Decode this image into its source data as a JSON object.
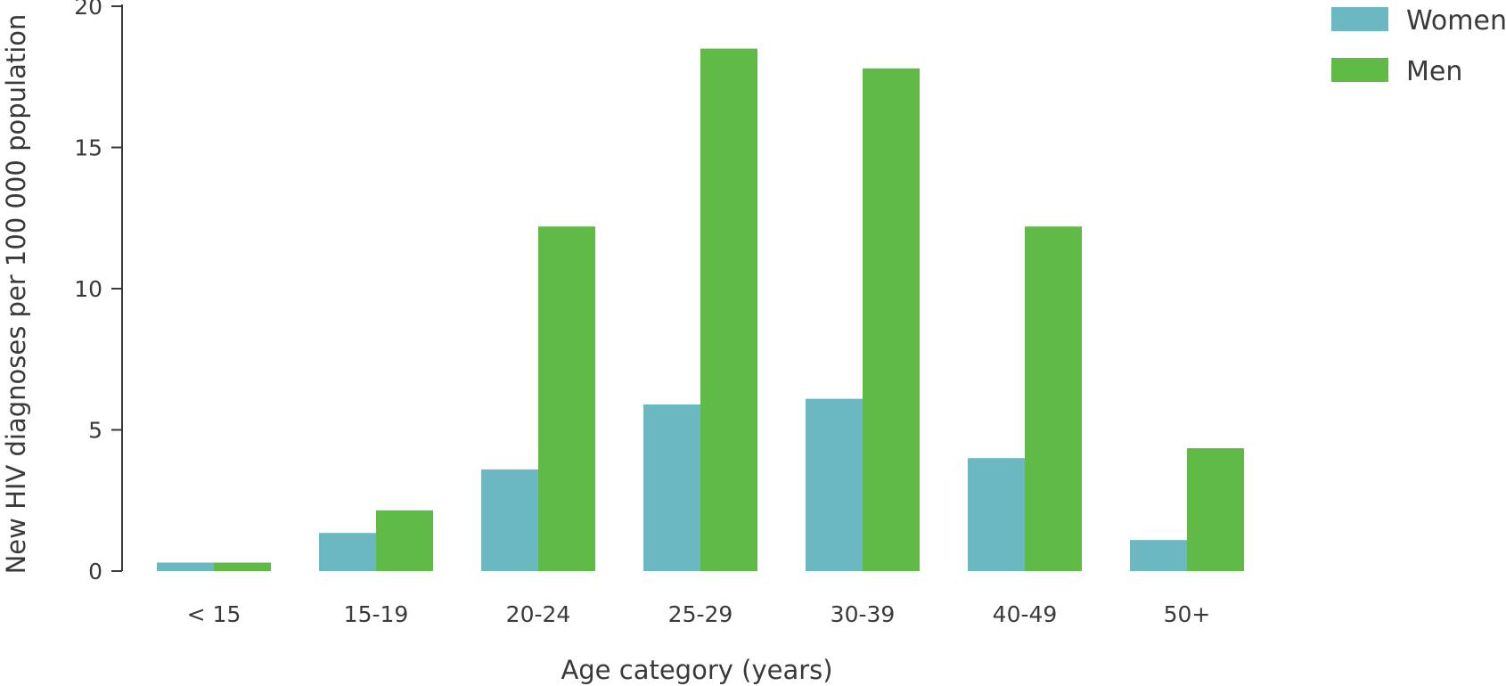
{
  "chart_data": {
    "type": "bar",
    "title": "",
    "xlabel": "Age category (years)",
    "ylabel": "New HIV diagnoses per 100 000 population",
    "categories": [
      "< 15",
      "15-19",
      "20-24",
      "25-29",
      "30-39",
      "40-49",
      "50+"
    ],
    "series": [
      {
        "name": "Women",
        "color": "#6cb8c0",
        "values": [
          0.3,
          1.35,
          3.6,
          5.9,
          6.1,
          4.0,
          1.1
        ]
      },
      {
        "name": "Men",
        "color": "#5fba46",
        "values": [
          0.3,
          2.15,
          12.2,
          18.5,
          17.8,
          12.2,
          4.35
        ]
      }
    ],
    "ylim": [
      0,
      20
    ],
    "yticks": [
      "0",
      "5",
      "10",
      "15",
      "20"
    ],
    "grid": false,
    "legend": "top-right"
  }
}
